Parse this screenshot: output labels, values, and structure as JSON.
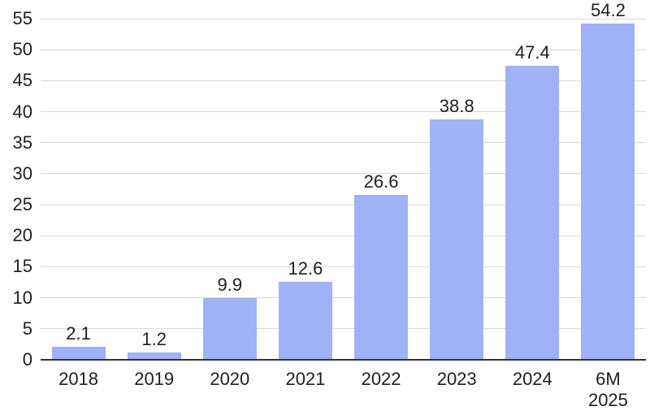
{
  "chart_data": {
    "type": "bar",
    "categories": [
      "2018",
      "2019",
      "2020",
      "2021",
      "2022",
      "2023",
      "2024",
      "6M\n2025"
    ],
    "values": [
      2.1,
      1.2,
      9.9,
      12.6,
      26.6,
      38.8,
      47.4,
      54.2
    ],
    "value_labels": [
      "2.1",
      "1.2",
      "9.9",
      "12.6",
      "26.6",
      "38.8",
      "47.4",
      "54.2"
    ],
    "title": "",
    "xlabel": "",
    "ylabel": "",
    "ylim": [
      0,
      55
    ],
    "yticks": [
      0,
      5,
      10,
      15,
      20,
      25,
      30,
      35,
      40,
      45,
      50,
      55
    ],
    "grid": true,
    "legend": false,
    "colors": {
      "bar": "#9FB2F7",
      "gridline": "#D9D9D9",
      "axis_line": "#333333",
      "text": "#1F1F1F",
      "background": "#FFFFFF"
    }
  }
}
